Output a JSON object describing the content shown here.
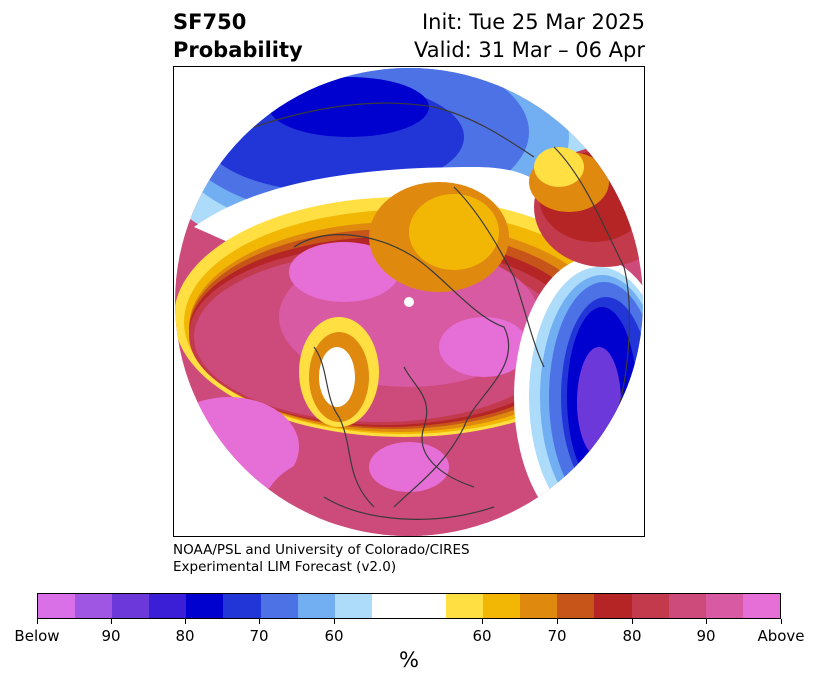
{
  "header": {
    "title_line1": "SF750",
    "title_line2": "Probability",
    "init_text": "Init: Tue 25 Mar 2025",
    "valid_text": "Valid: 31 Mar – 06 Apr"
  },
  "credit": {
    "line1": "NOAA/PSL and University of Colorado/CIRES",
    "line2": "Experimental LIM Forecast (v2.0)"
  },
  "colorbar": {
    "unit_label": "%",
    "colors": [
      "#d970e8",
      "#9f56e2",
      "#6d38da",
      "#3a1fd6",
      "#0000cf",
      "#2236d8",
      "#4c72e6",
      "#72aef2",
      "#addcfb",
      "#ffffff",
      "#ffdf42",
      "#f2b705",
      "#e0890f",
      "#c75419",
      "#b52525",
      "#c33a4d",
      "#cd4b7a",
      "#d85aa3",
      "#e66fd7"
    ],
    "tick_labels": [
      "Below",
      "90",
      "80",
      "70",
      "60",
      "60",
      "70",
      "80",
      "90",
      "Above"
    ]
  },
  "map": {
    "colors": {
      "above_max": "#e66fd7",
      "above_90": "#d85aa3",
      "above_85": "#cd4b7a",
      "above_80": "#c33a4d",
      "above_75": "#b52525",
      "above_70": "#c75419",
      "above_65": "#e0890f",
      "above_60": "#f2b705",
      "above_55": "#ffdf42",
      "below_55": "#addcfb",
      "below_60": "#72aef2",
      "below_65": "#4c72e6",
      "below_70": "#2236d8",
      "below_75": "#0000cf",
      "below_80": "#3a1fd6",
      "below_85": "#6d38da",
      "coastline": "#3a3a3a"
    }
  }
}
